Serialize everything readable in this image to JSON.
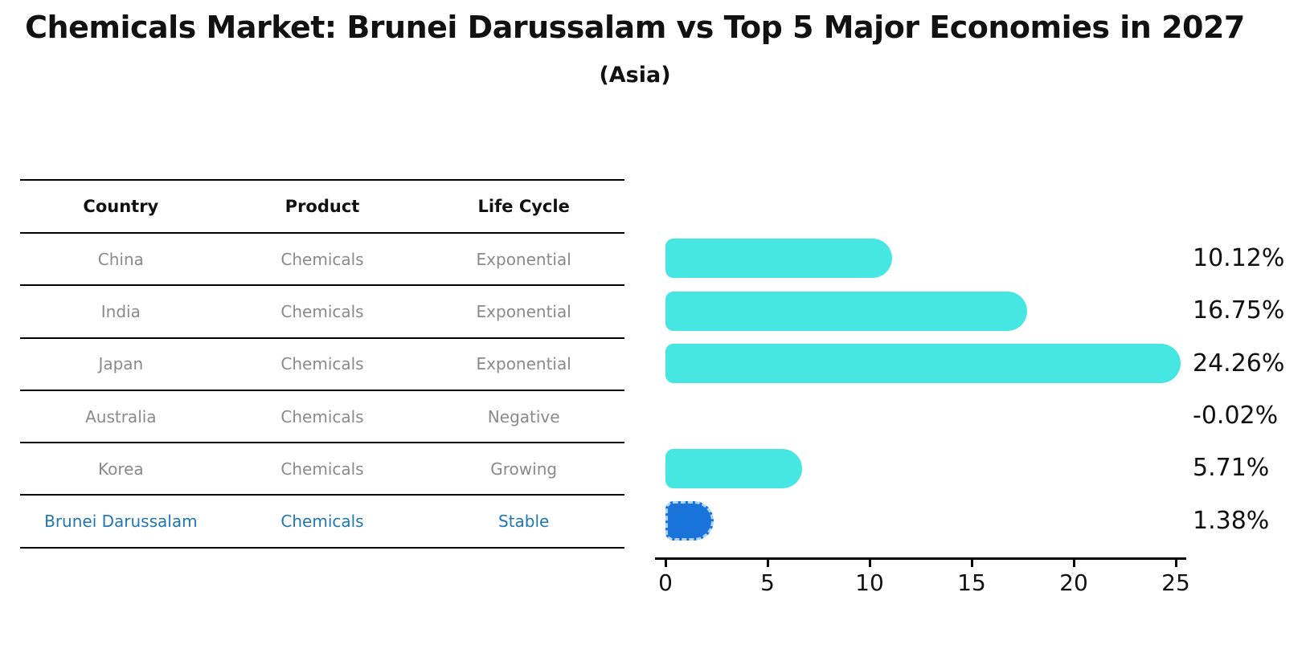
{
  "title": "Chemicals Market: Brunei Darussalam vs Top 5 Major Economies in 2027",
  "subtitle": "(Asia)",
  "table": {
    "headers": [
      "Country",
      "Product",
      "Life Cycle"
    ],
    "rows": [
      {
        "country": "China",
        "product": "Chemicals",
        "life_cycle": "Exponential",
        "highlight": false
      },
      {
        "country": "India",
        "product": "Chemicals",
        "life_cycle": "Exponential",
        "highlight": false
      },
      {
        "country": "Japan",
        "product": "Chemicals",
        "life_cycle": "Exponential",
        "highlight": false
      },
      {
        "country": "Australia",
        "product": "Chemicals",
        "life_cycle": "Negative",
        "highlight": false
      },
      {
        "country": "Korea",
        "product": "Chemicals",
        "life_cycle": "Growing",
        "highlight": false
      },
      {
        "country": "Brunei Darussalam",
        "product": "Chemicals",
        "life_cycle": "Stable",
        "highlight": true
      }
    ]
  },
  "chart_data": {
    "type": "bar",
    "orientation": "horizontal",
    "categories": [
      "China",
      "India",
      "Japan",
      "Australia",
      "Korea",
      "Brunei Darussalam"
    ],
    "values": [
      10.12,
      16.75,
      24.26,
      -0.02,
      5.71,
      1.38
    ],
    "labels": [
      "10.12%",
      "16.75%",
      "24.26%",
      "-0.02%",
      "5.71%",
      "1.38%"
    ],
    "title": "Chemicals Market: Brunei Darussalam vs Top 5 Major Economies in 2027 (Asia)",
    "xlabel": "",
    "ylabel": "",
    "xlim": [
      0,
      25
    ],
    "x_ticks": [
      0,
      5,
      10,
      15,
      20,
      25
    ],
    "grid": false,
    "legend": false,
    "bar_color": "#46E6E2",
    "highlight_color": "#1A73D8",
    "highlight_index": 5
  },
  "colors": {
    "background": "#FFFFFF",
    "bar_cyan": "#46E6E2",
    "bar_blue": "#1A73D8",
    "bar_blue_border": "#AFD6F5",
    "highlight_text": "#1F77B4",
    "table_text": "#8A8A8A",
    "header_text": "#111111",
    "axis": "#000000"
  }
}
